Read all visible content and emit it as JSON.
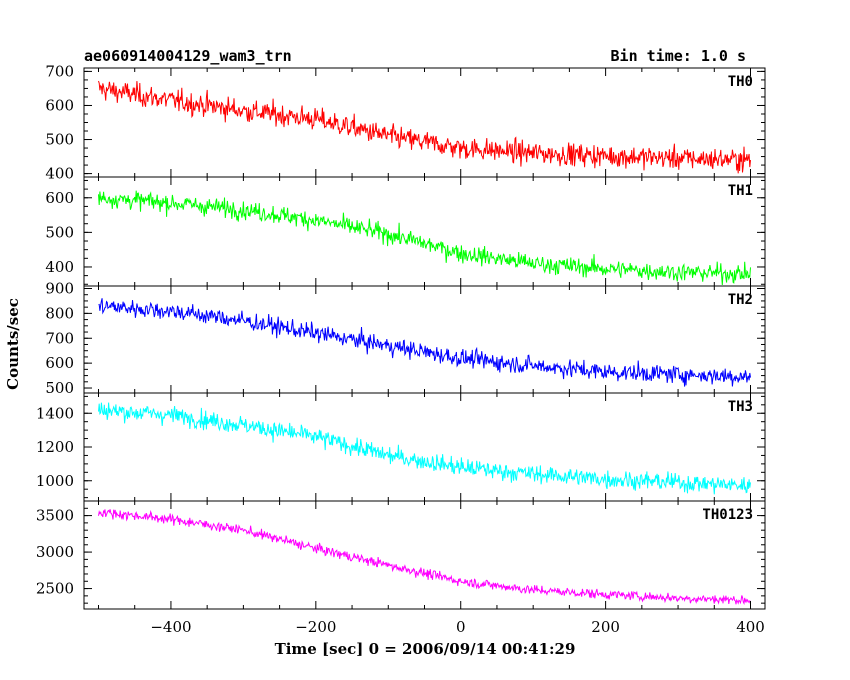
{
  "header": {
    "title": "ae060914004129_wam3_trn",
    "bin_time": "Bin time: 1.0 s"
  },
  "chart_data": {
    "type": "line",
    "xlabel": "Time [sec] 0 = 2006/09/14 00:41:29",
    "ylabel": "Counts/sec",
    "xlim": [
      -520,
      420
    ],
    "x_ticks": [
      -400,
      -200,
      0,
      200,
      400
    ],
    "panels": [
      {
        "name": "TH0",
        "color": "#ff0000",
        "ylim": [
          390,
          710
        ],
        "y_ticks": [
          400,
          500,
          600,
          700
        ],
        "trend_x": [
          -500,
          -400,
          -300,
          -200,
          -100,
          0,
          100,
          200,
          300,
          400
        ],
        "trend_y": [
          650,
          615,
          585,
          560,
          510,
          475,
          460,
          452,
          445,
          440
        ],
        "noise": 28
      },
      {
        "name": "TH1",
        "color": "#00ff00",
        "ylim": [
          345,
          660
        ],
        "y_ticks": [
          400,
          500,
          600
        ],
        "trend_x": [
          -500,
          -400,
          -300,
          -200,
          -100,
          0,
          100,
          200,
          300,
          400
        ],
        "trend_y": [
          600,
          585,
          565,
          535,
          495,
          440,
          410,
          395,
          385,
          380
        ],
        "noise": 22
      },
      {
        "name": "TH2",
        "color": "#0000ff",
        "ylim": [
          480,
          910
        ],
        "y_ticks": [
          500,
          600,
          700,
          800,
          900
        ],
        "trend_x": [
          -500,
          -400,
          -300,
          -200,
          -100,
          0,
          100,
          200,
          300,
          400
        ],
        "trend_y": [
          830,
          810,
          770,
          720,
          670,
          620,
          590,
          565,
          555,
          545
        ],
        "noise": 30
      },
      {
        "name": "TH3",
        "color": "#00ffff",
        "ylim": [
          880,
          1520
        ],
        "y_ticks": [
          1000,
          1200,
          1400
        ],
        "trend_x": [
          -500,
          -400,
          -300,
          -200,
          -100,
          0,
          100,
          200,
          300,
          400
        ],
        "trend_y": [
          1420,
          1390,
          1330,
          1260,
          1150,
          1080,
          1040,
          1010,
          990,
          970
        ],
        "noise": 45
      },
      {
        "name": "TH0123",
        "color": "#ff00ff",
        "ylim": [
          2220,
          3700
        ],
        "y_ticks": [
          2500,
          3000,
          3500
        ],
        "trend_x": [
          -500,
          -400,
          -300,
          -200,
          -100,
          0,
          100,
          200,
          300,
          400
        ],
        "trend_y": [
          3550,
          3450,
          3300,
          3050,
          2820,
          2600,
          2480,
          2420,
          2370,
          2340
        ],
        "noise": 55
      }
    ]
  }
}
